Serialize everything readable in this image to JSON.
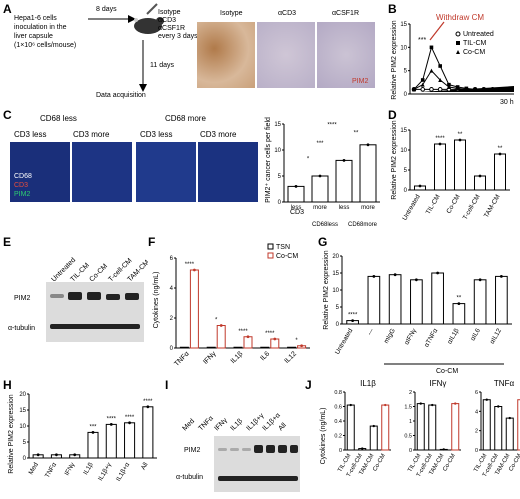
{
  "panels": [
    "A",
    "B",
    "C",
    "D",
    "E",
    "F",
    "G",
    "H",
    "I",
    "J"
  ],
  "panelA": {
    "inoc_text": [
      "Hepa1-6 cells",
      "inoculation in the",
      "liver capsule",
      "(1×10⁶ cells/mouse)"
    ],
    "days8": "8 days",
    "treat": [
      "Isotype",
      "αCD3",
      "αCSF1R",
      "every 3 days"
    ],
    "days11": "11 days",
    "acq": "Data acquisition",
    "ihc_titles": [
      "Isotype",
      "αCD3",
      "αCSF1R"
    ],
    "ihc_stain": "PIM2"
  },
  "panelB": {
    "ylabel": "Relative PIM2 expression",
    "annotation": "Withdraw CM",
    "x_end": "30 h",
    "legend": [
      "Untreated",
      "TIL-CM",
      "Co-CM"
    ],
    "sig": "***",
    "chart_data": {
      "type": "line",
      "yticks": [
        0,
        5,
        10,
        15
      ],
      "series": [
        {
          "name": "Untreated",
          "values": [
            1,
            1,
            1,
            1,
            1,
            1,
            1,
            1,
            1,
            1,
            1,
            1
          ]
        },
        {
          "name": "TIL-CM",
          "values": [
            1,
            3,
            10,
            6,
            2,
            1.5,
            1.2,
            1,
            1,
            1,
            1,
            1
          ]
        },
        {
          "name": "Co-CM",
          "values": [
            1,
            2,
            5,
            3,
            1.5,
            1.2,
            1,
            1,
            1,
            1,
            1,
            1
          ]
        }
      ]
    }
  },
  "panelC": {
    "group1": "CD68 less",
    "group2": "CD68 more",
    "sub": [
      "CD3 less",
      "CD3 more",
      "CD3 less",
      "CD3 more"
    ],
    "stains": [
      "CD68",
      "CD3",
      "PIM2"
    ],
    "ylabel": "PIM2⁺ cancer cells per field",
    "xcat": [
      "less",
      "more",
      "less",
      "more"
    ],
    "xrow": "CD3",
    "groups": [
      "CD68less",
      "CD68more"
    ],
    "sigs": [
      "*",
      "***",
      "**",
      "****"
    ],
    "chart_data": {
      "type": "bar",
      "categories": [
        "CD68less CD3less",
        "CD68less CD3more",
        "CD68more CD3less",
        "CD68more CD3more"
      ],
      "values": [
        3,
        5,
        8,
        11
      ],
      "ylim": [
        0,
        15
      ],
      "yticks": [
        0,
        5,
        10,
        15
      ]
    }
  },
  "panelD": {
    "ylabel": "Relative PIM2 expression",
    "sigs": [
      "****",
      "**",
      "**",
      "*",
      "**"
    ],
    "chart_data": {
      "type": "bar",
      "categories": [
        "Untreated",
        "TIL-CM",
        "Co-CM",
        "T-cell-CM",
        "TAM-CM"
      ],
      "values": [
        1,
        11.5,
        12.5,
        3.5,
        9
      ],
      "ylim": [
        0,
        15
      ],
      "yticks": [
        0,
        5,
        10,
        15
      ]
    }
  },
  "panelE": {
    "lanes": [
      "Untreated",
      "TIL-CM",
      "Co-CM",
      "T-cell-CM",
      "TAM-CM"
    ],
    "rows": [
      "PIM2",
      "α-tubulin"
    ]
  },
  "panelF": {
    "ylabel": "Cytokines (ng/mL)",
    "legend": [
      "TSN",
      "Co-CM"
    ],
    "sigs": [
      "****",
      "*",
      "****",
      "****",
      "*"
    ],
    "chart_data": {
      "type": "bar",
      "categories": [
        "TNFα",
        "IFNγ",
        "IL1β",
        "IL6",
        "IL12"
      ],
      "series": [
        {
          "name": "TSN",
          "values": [
            0.05,
            0.05,
            0.05,
            0.05,
            0.05
          ]
        },
        {
          "name": "Co-CM",
          "values": [
            5.2,
            1.5,
            0.75,
            0.6,
            0.15
          ]
        }
      ],
      "ylim": [
        0,
        6
      ],
      "yticks": [
        0,
        2,
        4,
        6
      ]
    }
  },
  "panelG": {
    "ylabel": "Relative PIM2 expression",
    "bracket": "Co-CM",
    "sigs": [
      "****",
      "**"
    ],
    "chart_data": {
      "type": "bar",
      "categories": [
        "Untreated",
        "---",
        "mIgG",
        "αIFNγ",
        "αTNFα",
        "αIL1β",
        "αIL6",
        "αIL12"
      ],
      "values": [
        1,
        14,
        14.5,
        13,
        15,
        6,
        13,
        14
      ],
      "ylim": [
        0,
        20
      ],
      "yticks": [
        0,
        5,
        10,
        15,
        20
      ]
    }
  },
  "panelH": {
    "ylabel": "Relative PIM2 expression",
    "sigs": [
      "***",
      "****",
      "****",
      "****"
    ],
    "chart_data": {
      "type": "bar",
      "categories": [
        "Med",
        "TNFα",
        "IFNγ",
        "IL1β",
        "IL1β+γ",
        "IL1β+α",
        "All"
      ],
      "values": [
        1,
        1,
        1,
        8,
        10.5,
        11,
        16
      ],
      "ylim": [
        0,
        20
      ],
      "yticks": [
        0,
        5,
        10,
        15,
        20
      ]
    }
  },
  "panelI": {
    "lanes": [
      "Med",
      "TNFα",
      "IFNγ",
      "IL1β",
      "IL1β+γ",
      "IL1β+α",
      "All"
    ],
    "rows": [
      "PIM2",
      "α-tubulin"
    ]
  },
  "panelJ": {
    "ylabel": "Cytokines (ng/mL)",
    "titles": [
      "IL1β",
      "IFNγ",
      "TNFα"
    ],
    "xcat": [
      "TIL-CM",
      "T-cell-CM",
      "TAM-CM",
      "Co-CM"
    ],
    "chart_data": [
      {
        "type": "bar",
        "title": "IL1β",
        "categories": [
          "TIL-CM",
          "T-cell-CM",
          "TAM-CM",
          "Co-CM"
        ],
        "values": [
          0.62,
          0.02,
          0.33,
          0.62
        ],
        "ylim": [
          0,
          0.8
        ],
        "yticks": [
          0.0,
          0.2,
          0.4,
          0.6,
          0.8
        ]
      },
      {
        "type": "bar",
        "title": "IFNγ",
        "categories": [
          "TIL-CM",
          "T-cell-CM",
          "TAM-CM",
          "Co-CM"
        ],
        "values": [
          1.6,
          1.55,
          0.02,
          1.6
        ],
        "ylim": [
          0,
          2.0
        ],
        "yticks": [
          0.0,
          0.5,
          1.0,
          1.5,
          2.0
        ]
      },
      {
        "type": "bar",
        "title": "TNFα",
        "categories": [
          "TIL-CM",
          "T-cell-CM",
          "TAM-CM",
          "Co-CM"
        ],
        "values": [
          5.2,
          4.5,
          3.3,
          5.2
        ],
        "ylim": [
          0,
          6
        ],
        "yticks": [
          0,
          2,
          4,
          6
        ]
      }
    ]
  }
}
